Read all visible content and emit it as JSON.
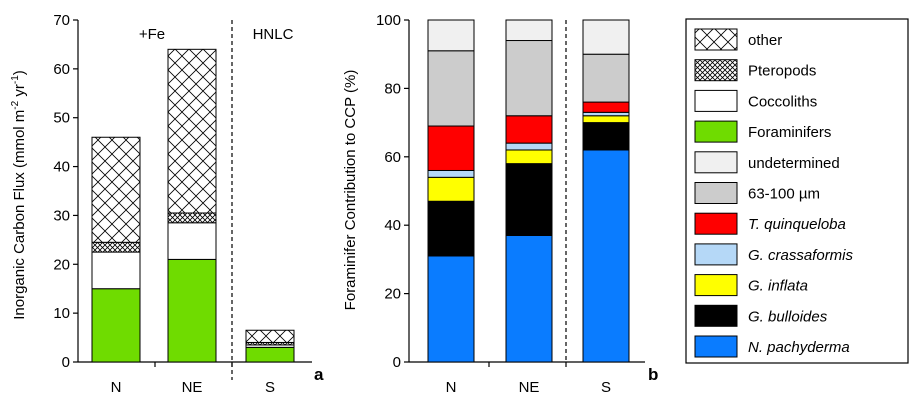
{
  "colors": {
    "n_pachyderma": "#0a7cff",
    "g_bulloides": "#000000",
    "g_inflata": "#ffff00",
    "g_crassaformis": "#b5d8f7",
    "t_quinqueloba": "#ff0000",
    "size_63_100": "#cccccc",
    "undetermined": "#f0f0f0",
    "foraminifers": "#6fdc00",
    "coccoliths": "#ffffff",
    "pteropods": "#ffffff",
    "other": "#ffffff"
  },
  "chart_data": [
    {
      "type": "bar",
      "stacked": true,
      "panel_label": "a",
      "title": "",
      "xlabel": "",
      "ylabel": "Inorganic Carbon Flux (mmol m",
      "ylabel_sup1": "-2",
      "ylabel_mid": " yr",
      "ylabel_sup2": "-1",
      "ylabel_end": ")",
      "ylim": [
        0,
        70
      ],
      "yticks": [
        "0",
        "10",
        "20",
        "30",
        "40",
        "50",
        "60",
        "70"
      ],
      "categories": [
        "N",
        "NE",
        "S"
      ],
      "group_labels": [
        "+Fe",
        "HNLC"
      ],
      "series": [
        {
          "name": "Foraminifers",
          "values": [
            15,
            21,
            3
          ]
        },
        {
          "name": "Coccoliths",
          "values": [
            7.5,
            7.5,
            0.5
          ]
        },
        {
          "name": "Pteropods",
          "values": [
            2,
            2,
            0.5
          ]
        },
        {
          "name": "other",
          "values": [
            21.5,
            33.5,
            2.5
          ]
        }
      ]
    },
    {
      "type": "bar",
      "stacked": true,
      "panel_label": "b",
      "title": "",
      "xlabel": "",
      "ylabel": "Foraminifer Contribution to CCP (%)",
      "ylim": [
        0,
        100
      ],
      "yticks": [
        "0",
        "20",
        "40",
        "60",
        "80",
        "100"
      ],
      "categories": [
        "N",
        "NE",
        "S"
      ],
      "series": [
        {
          "name": "N. pachyderma",
          "values": [
            31,
            37,
            62
          ]
        },
        {
          "name": "G. bulloides",
          "values": [
            16,
            21,
            8
          ]
        },
        {
          "name": "G. inflata",
          "values": [
            7,
            4,
            2
          ]
        },
        {
          "name": "G. crassaformis",
          "values": [
            2,
            2,
            1
          ]
        },
        {
          "name": "T. quinqueloba",
          "values": [
            13,
            8,
            3
          ]
        },
        {
          "name": "63-100 µm",
          "values": [
            22,
            22,
            14
          ]
        },
        {
          "name": "undetermined",
          "values": [
            9,
            6,
            10
          ]
        }
      ]
    }
  ],
  "legend": [
    {
      "label": "other",
      "italic": false
    },
    {
      "label": "Pteropods",
      "italic": false
    },
    {
      "label": "Coccoliths",
      "italic": false
    },
    {
      "label": "Foraminifers",
      "italic": false
    },
    {
      "label": "undetermined",
      "italic": false
    },
    {
      "label": "63-100 µm",
      "italic": false
    },
    {
      "label": "T. quinqueloba",
      "italic": true
    },
    {
      "label": "G. crassaformis",
      "italic": true
    },
    {
      "label": "G. inflata",
      "italic": true
    },
    {
      "label": "G. bulloides",
      "italic": true
    },
    {
      "label": "N. pachyderma",
      "italic": true
    }
  ]
}
